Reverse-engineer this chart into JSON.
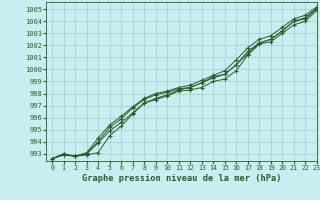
{
  "title": "Graphe pression niveau de la mer (hPa)",
  "bg_color": "#c8eef0",
  "grid_color": "#9dcdd0",
  "line_color": "#2d5a2d",
  "xlim": [
    -0.5,
    23
  ],
  "ylim": [
    992.4,
    1005.6
  ],
  "yticks": [
    993,
    994,
    995,
    996,
    997,
    998,
    999,
    1000,
    1001,
    1002,
    1003,
    1004,
    1005
  ],
  "xticks": [
    0,
    1,
    2,
    3,
    4,
    5,
    6,
    7,
    8,
    9,
    10,
    11,
    12,
    13,
    14,
    15,
    16,
    17,
    18,
    19,
    20,
    21,
    22,
    23
  ],
  "line1": [
    992.6,
    993.0,
    992.8,
    992.9,
    993.1,
    994.5,
    995.3,
    996.3,
    997.2,
    997.5,
    997.8,
    998.2,
    998.3,
    998.5,
    999.0,
    999.2,
    999.9,
    1001.2,
    1002.1,
    1002.3,
    1003.0,
    1003.7,
    1004.0,
    1004.9
  ],
  "line2": [
    992.6,
    992.9,
    992.8,
    993.0,
    994.0,
    995.2,
    995.9,
    996.8,
    997.5,
    997.9,
    998.1,
    998.4,
    998.5,
    998.9,
    999.4,
    999.6,
    1000.4,
    1001.5,
    1002.2,
    1002.5,
    1003.2,
    1004.0,
    1004.2,
    1005.0
  ],
  "line3": [
    992.6,
    992.9,
    992.8,
    993.1,
    994.3,
    995.4,
    996.1,
    996.9,
    997.6,
    998.0,
    998.2,
    998.5,
    998.7,
    999.1,
    999.5,
    999.9,
    1000.8,
    1001.8,
    1002.5,
    1002.8,
    1003.5,
    1004.2,
    1004.5,
    1005.2
  ],
  "line4": [
    992.6,
    993.0,
    992.8,
    993.0,
    993.9,
    994.9,
    995.6,
    996.4,
    997.2,
    997.6,
    997.9,
    998.3,
    998.5,
    998.9,
    999.3,
    999.6,
    1000.4,
    1001.3,
    1002.2,
    1002.5,
    1003.2,
    1004.0,
    1004.3,
    1005.1
  ]
}
